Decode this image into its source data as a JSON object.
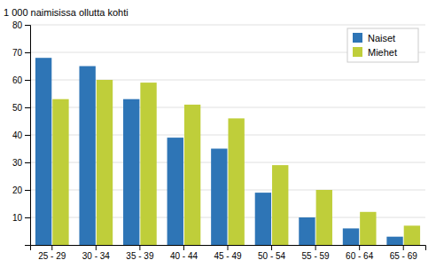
{
  "chart_data": {
    "type": "bar",
    "ylabel": "1 000 naimisissa ollutta kohti",
    "categories": [
      "25 - 29",
      "30 - 34",
      "35 - 39",
      "40 - 44",
      "45 - 49",
      "50 - 54",
      "55 - 59",
      "60 - 64",
      "65 - 69"
    ],
    "series": [
      {
        "name": "Naiset",
        "color": "#2E75B6",
        "values": [
          68,
          65,
          53,
          39,
          35,
          19,
          10,
          6,
          3
        ]
      },
      {
        "name": "Miehet",
        "color": "#BFCE3A",
        "values": [
          53,
          60,
          59,
          51,
          46,
          29,
          20,
          12,
          7
        ]
      }
    ],
    "ylim": [
      0,
      80
    ],
    "yticks": [
      10,
      20,
      30,
      40,
      50,
      60,
      70,
      80
    ],
    "grid": true,
    "legend": "upper right"
  }
}
